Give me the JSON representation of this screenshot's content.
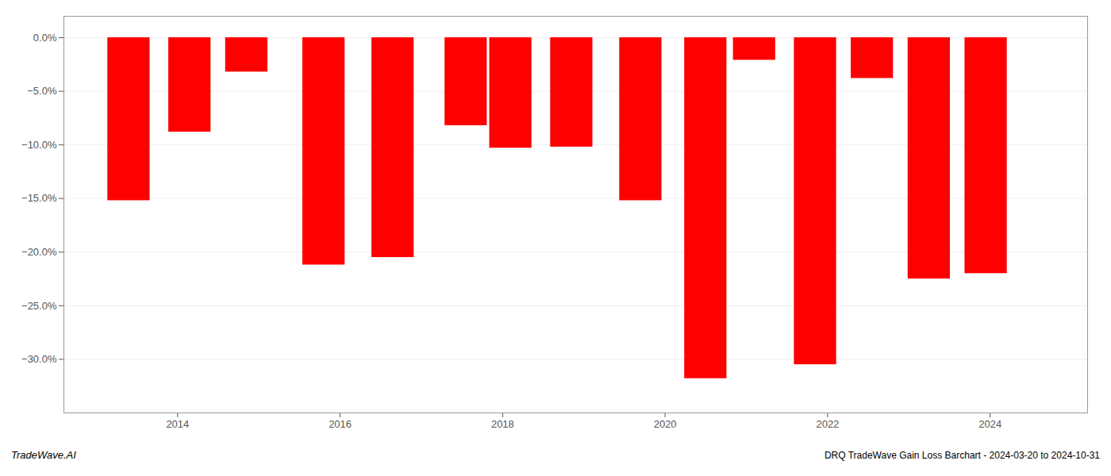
{
  "chart_data": {
    "type": "bar",
    "title": "DRQ TradeWave Gain Loss Barchart - 2024-03-20 to 2024-10-31",
    "annotations": [
      "TradeWave.AI"
    ],
    "x": [
      2013.4,
      2014.15,
      2014.85,
      2015.8,
      2016.65,
      2017.55,
      2018.1,
      2018.85,
      2019.7,
      2020.5,
      2021.1,
      2021.85,
      2022.55,
      2023.25,
      2023.95
    ],
    "values": [
      -15.2,
      -8.8,
      -3.2,
      -21.2,
      -20.5,
      -8.2,
      -10.3,
      -10.2,
      -15.2,
      -31.8,
      -2.1,
      -30.5,
      -3.8,
      -22.5,
      -22.0
    ],
    "color": "#ff0000",
    "xlim": [
      2012.6,
      2025.2
    ],
    "xticks": [
      2014,
      2016,
      2018,
      2020,
      2022,
      2024
    ],
    "ylim": [
      -35,
      2.0
    ],
    "yticks": [
      {
        "value": 0.0,
        "label": "0.0%"
      },
      {
        "value": -5.0,
        "label": "−5.0%"
      },
      {
        "value": -10.0,
        "label": "−10.0%"
      },
      {
        "value": -15.0,
        "label": "−15.0%"
      },
      {
        "value": -20.0,
        "label": "−20.0%"
      },
      {
        "value": -25.0,
        "label": "−25.0%"
      },
      {
        "value": -30.0,
        "label": "−30.0%"
      }
    ],
    "grid": true
  }
}
